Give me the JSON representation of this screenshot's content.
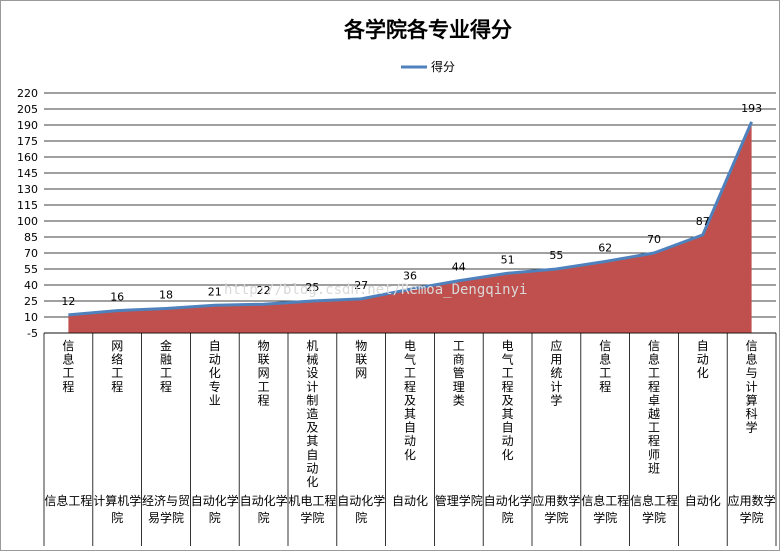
{
  "chart_data": {
    "type": "area",
    "title": "各学院各专业得分",
    "xlabel": "",
    "ylabel": "",
    "ylim": [
      -5,
      220
    ],
    "yticks": [
      -5,
      10,
      25,
      40,
      55,
      70,
      85,
      100,
      115,
      130,
      145,
      160,
      175,
      190,
      205,
      220
    ],
    "grid": true,
    "legend": "top-center",
    "categories": [
      {
        "major": "信息工程",
        "college": "信息工程"
      },
      {
        "major": "网络工程",
        "college": "计算机学院"
      },
      {
        "major": "金融工程",
        "college": "经济与贸易学院"
      },
      {
        "major": "自动化专业",
        "college": "自动化学院"
      },
      {
        "major": "物联网工程",
        "college": "自动化学院"
      },
      {
        "major": "机械设计制造及其自动化",
        "college": "机电工程学院"
      },
      {
        "major": "物联网",
        "college": "自动化学院"
      },
      {
        "major": "电气工程及其自动化",
        "college": "自动化"
      },
      {
        "major": "工商管理类",
        "college": "管理学院"
      },
      {
        "major": "电气工程及其自动化",
        "college": "自动化学院"
      },
      {
        "major": "应用统计学",
        "college": "应用数学学院"
      },
      {
        "major": "信息工程",
        "college": "信息工程学院"
      },
      {
        "major": "信息工程卓越工程师班",
        "college": "信息工程学院"
      },
      {
        "major": "自动化",
        "college": "自动化"
      },
      {
        "major": "信息与计算科学",
        "college": "应用数学学院"
      }
    ],
    "series": [
      {
        "name": "得分",
        "values": [
          12,
          16,
          18,
          21,
          22,
          25,
          27,
          36,
          44,
          51,
          55,
          62,
          70,
          87,
          193
        ]
      }
    ],
    "colors": {
      "fill": "#c0504d",
      "line": "#4f81bd",
      "grid": "#000000"
    }
  },
  "watermark": "http://blog.csdn.net/Remoa_Dengqinyi"
}
